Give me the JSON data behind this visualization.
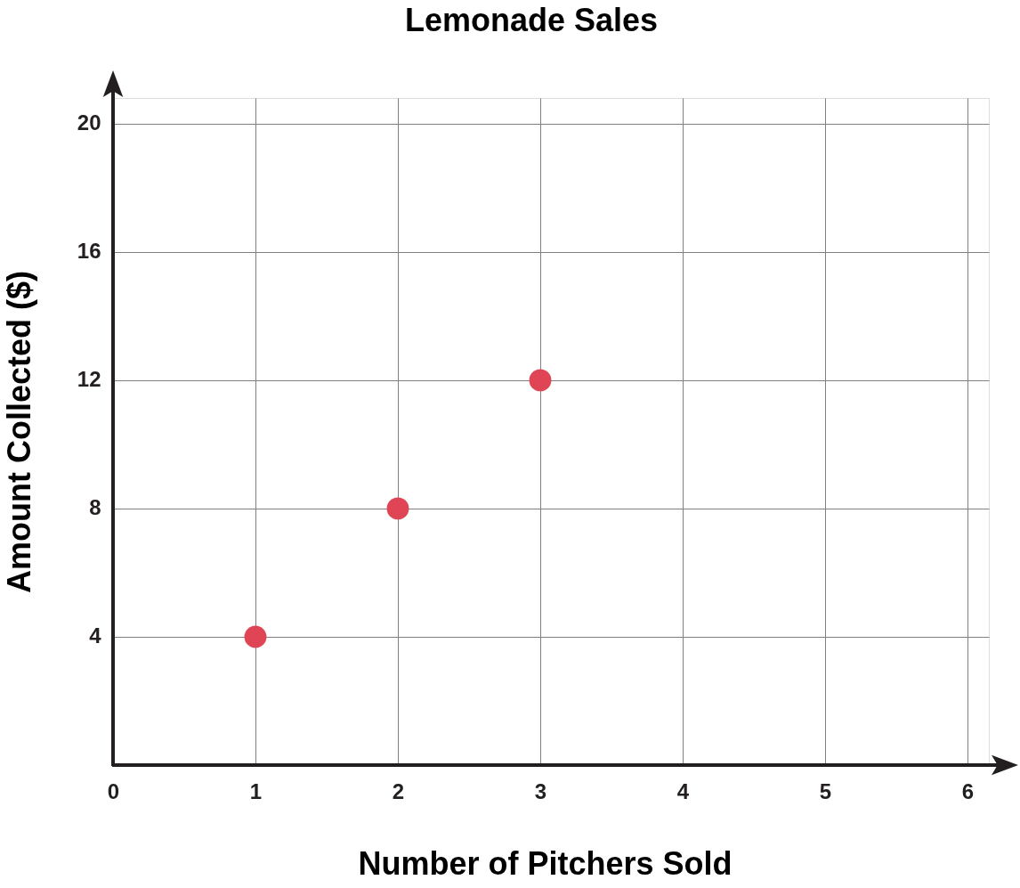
{
  "chart_data": {
    "type": "scatter",
    "title": "Lemonade Sales",
    "xlabel": "Number of Pitchers Sold",
    "ylabel": "Amount Collected ($)",
    "x": [
      1,
      2,
      3
    ],
    "values": [
      4,
      8,
      12
    ],
    "color": "#e04555",
    "xlim": [
      0,
      6.15
    ],
    "ylim": [
      0,
      20.8
    ],
    "xticks": [
      0,
      1,
      2,
      3,
      4,
      5,
      6
    ],
    "yticks": [
      4,
      8,
      12,
      16,
      20
    ],
    "grid": true,
    "marker": "circle"
  }
}
